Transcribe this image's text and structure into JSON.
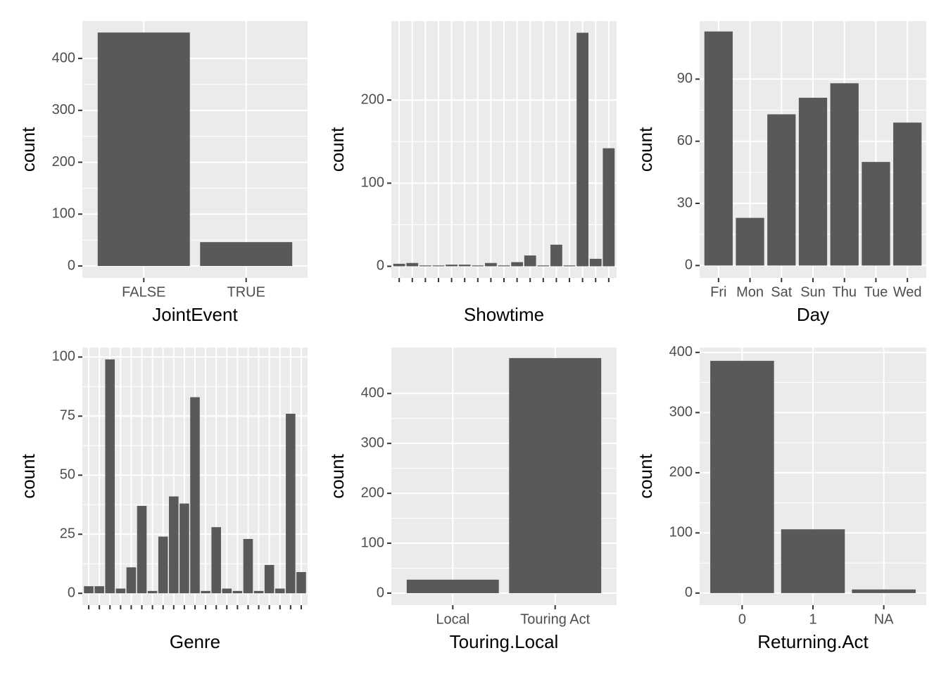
{
  "chart_data": [
    {
      "type": "bar",
      "x_label": "JointEvent",
      "y_label": "count",
      "color": "#595959",
      "grid": true,
      "categories": [
        "FALSE",
        "TRUE"
      ],
      "values": [
        450,
        46
      ],
      "ylim": [
        -23,
        472
      ],
      "yticks": [
        0,
        100,
        200,
        300,
        400
      ]
    },
    {
      "type": "bar",
      "x_label": "Showtime",
      "y_label": "count",
      "color": "#595959",
      "grid": true,
      "categories": [
        null,
        null,
        null,
        null,
        null,
        null,
        null,
        null,
        null,
        null,
        null,
        null,
        null,
        null,
        null,
        null,
        null
      ],
      "values": [
        3,
        4,
        1,
        1,
        2,
        2,
        1,
        4,
        1,
        5,
        13,
        1,
        26,
        1,
        281,
        9,
        142
      ],
      "ylim": [
        -14,
        295
      ],
      "yticks": [
        0,
        100,
        200
      ]
    },
    {
      "type": "bar",
      "x_label": "Day",
      "y_label": "count",
      "color": "#595959",
      "grid": true,
      "categories": [
        "Fri",
        "Mon",
        "Sat",
        "Sun",
        "Thu",
        "Tue",
        "Wed"
      ],
      "values": [
        113,
        23,
        73,
        81,
        88,
        50,
        69
      ],
      "ylim": [
        -6,
        118
      ],
      "yticks": [
        0,
        30,
        60,
        90
      ]
    },
    {
      "type": "bar",
      "x_label": "Genre",
      "y_label": "count",
      "color": "#595959",
      "grid": true,
      "categories": [
        null,
        null,
        null,
        null,
        null,
        null,
        null,
        null,
        null,
        null,
        null,
        null,
        null,
        null,
        null,
        null,
        null,
        null,
        null,
        null,
        null
      ],
      "values": [
        3,
        3,
        99,
        2,
        11,
        37,
        1,
        24,
        41,
        38,
        83,
        1,
        28,
        2,
        1,
        23,
        1,
        12,
        2,
        76,
        9
      ],
      "ylim": [
        -5,
        104
      ],
      "yticks": [
        0,
        25,
        50,
        75,
        100
      ]
    },
    {
      "type": "bar",
      "x_label": "Touring.Local",
      "y_label": "count",
      "color": "#595959",
      "grid": true,
      "categories": [
        "Local",
        "Touring Act"
      ],
      "values": [
        27,
        471
      ],
      "ylim": [
        -24,
        492
      ],
      "yticks": [
        0,
        100,
        200,
        300,
        400
      ]
    },
    {
      "type": "bar",
      "x_label": "Returning.Act",
      "y_label": "count",
      "color": "#595959",
      "grid": true,
      "categories": [
        "0",
        "1",
        "NA"
      ],
      "values": [
        386,
        106,
        6
      ],
      "ylim": [
        -20,
        408
      ],
      "yticks": [
        0,
        100,
        200,
        300,
        400
      ]
    }
  ]
}
